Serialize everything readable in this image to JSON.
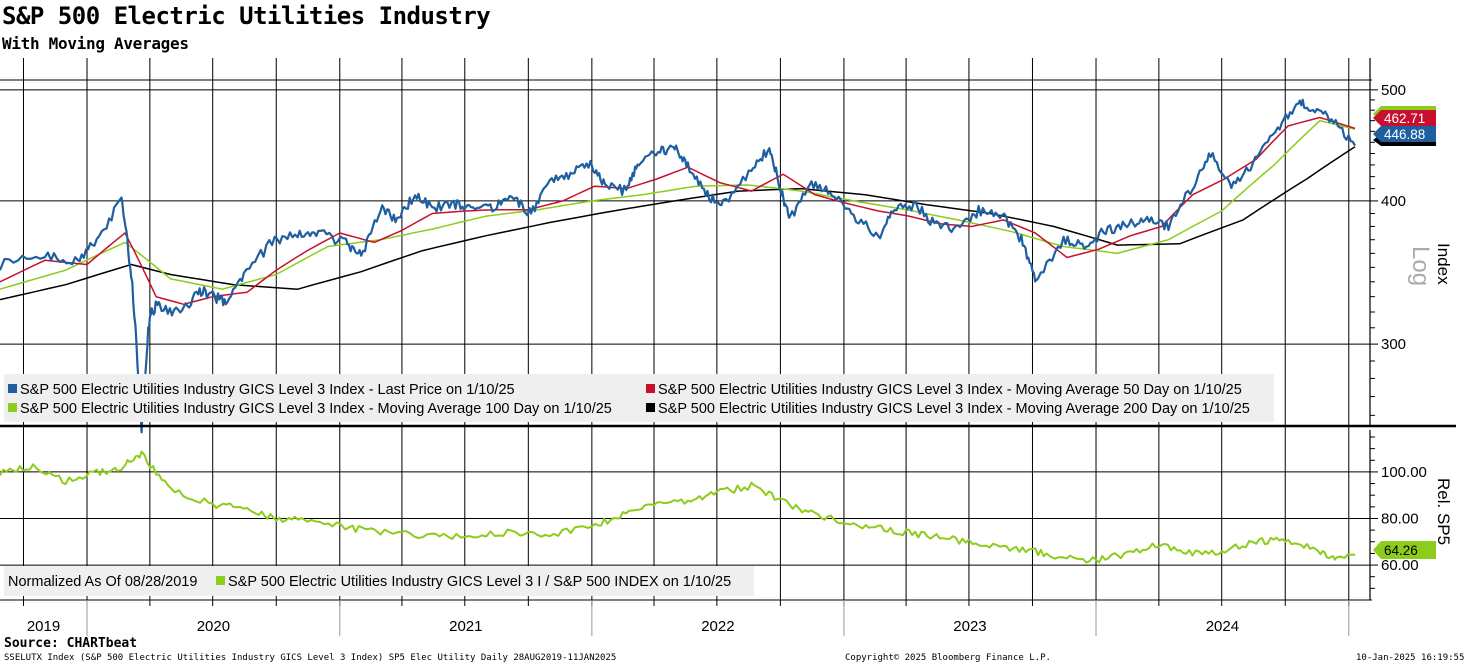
{
  "title": "S&P 500 Electric Utilities Industry",
  "subtitle": "With Moving Averages",
  "source": "Source: CHARTbeat",
  "footer": {
    "left": "SSELUTX Index (S&P 500 Electric Utilities Industry GICS Level 3 Index) SP5 Elec Utility  Daily 28AUG2019-11JAN2025",
    "center": "Copyright© 2025 Bloomberg Finance L.P.",
    "right": "10-Jan-2025 16:19:55"
  },
  "colors": {
    "last_price": "#1f5fa0",
    "ma50": "#c8102e",
    "ma100": "#8ccc1a",
    "ma200": "#000000",
    "relative": "#8ccc1a"
  },
  "chart_data": [
    {
      "type": "line",
      "panel": "upper",
      "scale": "log",
      "ylabel": "Index",
      "scale_label": "Log",
      "ylim": [
        255,
        510
      ],
      "yticks": [
        300,
        400,
        500
      ],
      "x_years": [
        "2019",
        "2020",
        "2021",
        "2022",
        "2023",
        "2024"
      ],
      "x_start": "2019-08-28",
      "x_end": "2025-01-10",
      "last_values": {
        "ma50": "462.71",
        "last": "446.88"
      },
      "legend": [
        "S&P 500 Electric Utilities Industry GICS Level 3 Index - Last Price on 1/10/25",
        "S&P 500 Electric Utilities Industry GICS Level 3 Index - Moving Average 50 Day on 1/10/25",
        "S&P 500 Electric Utilities Industry GICS Level 3 Index - Moving Average 100 Day on 1/10/25",
        "S&P 500 Electric Utilities Industry GICS Level 3 Index - Moving Average 200 Day on 1/10/25"
      ],
      "series": [
        {
          "key": "last",
          "x": [
            "2019-08-28",
            "2019-11-01",
            "2019-12-15",
            "2020-01-15",
            "2020-02-20",
            "2020-03-05",
            "2020-03-20",
            "2020-04-01",
            "2020-04-15",
            "2020-05-15",
            "2020-06-10",
            "2020-07-01",
            "2020-07-20",
            "2020-08-15",
            "2020-09-25",
            "2020-11-01",
            "2020-12-01",
            "2021-01-10",
            "2021-02-01",
            "2021-03-01",
            "2021-03-25",
            "2021-04-20",
            "2021-05-15",
            "2021-06-15",
            "2021-07-10",
            "2021-08-10",
            "2021-09-10",
            "2021-10-05",
            "2021-11-01",
            "2021-12-01",
            "2021-12-30",
            "2022-01-20",
            "2022-02-20",
            "2022-03-10",
            "2022-04-10",
            "2022-05-01",
            "2022-05-20",
            "2022-06-15",
            "2022-07-10",
            "2022-08-20",
            "2022-09-15",
            "2022-10-01",
            "2022-10-15",
            "2022-11-15",
            "2022-12-15",
            "2023-01-15",
            "2023-02-20",
            "2023-03-15",
            "2023-04-15",
            "2023-05-15",
            "2023-06-15",
            "2023-07-15",
            "2023-08-15",
            "2023-09-15",
            "2023-10-05",
            "2023-11-15",
            "2023-12-15",
            "2024-01-15",
            "2024-02-15",
            "2024-03-15",
            "2024-04-15",
            "2024-05-20",
            "2024-06-15",
            "2024-07-15",
            "2024-08-15",
            "2024-09-20",
            "2024-10-20",
            "2024-11-10",
            "2024-12-10",
            "2025-01-10"
          ],
          "values": [
            352,
            360,
            355,
            368,
            402,
            345,
            255,
            320,
            325,
            318,
            335,
            330,
            326,
            345,
            368,
            375,
            375,
            368,
            358,
            395,
            385,
            405,
            395,
            398,
            392,
            395,
            402,
            390,
            418,
            422,
            432,
            412,
            408,
            432,
            442,
            445,
            430,
            405,
            398,
            425,
            445,
            410,
            385,
            415,
            405,
            388,
            372,
            393,
            397,
            380,
            378,
            392,
            390,
            370,
            341,
            370,
            365,
            377,
            382,
            386,
            380,
            412,
            440,
            410,
            430,
            462,
            488,
            482,
            470,
            447
          ]
        },
        {
          "key": "ma50",
          "x": [
            "2019-08-28",
            "2019-11-01",
            "2020-01-01",
            "2020-02-25",
            "2020-04-10",
            "2020-05-20",
            "2020-07-01",
            "2020-08-20",
            "2020-10-01",
            "2020-11-15",
            "2021-01-01",
            "2021-02-20",
            "2021-04-01",
            "2021-05-15",
            "2021-07-01",
            "2021-08-15",
            "2021-10-01",
            "2021-11-20",
            "2022-01-05",
            "2022-02-20",
            "2022-04-05",
            "2022-05-20",
            "2022-07-05",
            "2022-08-20",
            "2022-10-05",
            "2022-11-20",
            "2023-01-05",
            "2023-02-20",
            "2023-04-05",
            "2023-05-20",
            "2023-07-05",
            "2023-08-20",
            "2023-10-05",
            "2023-11-20",
            "2024-01-05",
            "2024-02-20",
            "2024-04-05",
            "2024-05-20",
            "2024-07-05",
            "2024-08-20",
            "2024-10-05",
            "2024-11-20",
            "2025-01-10"
          ],
          "values": [
            340,
            355,
            352,
            375,
            330,
            325,
            330,
            333,
            348,
            362,
            375,
            368,
            377,
            390,
            392,
            393,
            393,
            400,
            412,
            410,
            418,
            428,
            415,
            408,
            422,
            405,
            398,
            392,
            388,
            382,
            380,
            385,
            375,
            357,
            363,
            373,
            380,
            405,
            418,
            435,
            465,
            473,
            462.71
          ]
        },
        {
          "key": "ma100",
          "x": [
            "2019-08-28",
            "2019-12-01",
            "2020-02-25",
            "2020-05-01",
            "2020-07-15",
            "2020-10-01",
            "2020-12-15",
            "2021-03-01",
            "2021-05-15",
            "2021-08-01",
            "2021-10-15",
            "2022-01-01",
            "2022-03-15",
            "2022-06-01",
            "2022-08-15",
            "2022-11-01",
            "2023-01-15",
            "2023-04-01",
            "2023-06-15",
            "2023-09-01",
            "2023-11-15",
            "2024-02-01",
            "2024-04-15",
            "2024-07-01",
            "2024-09-15",
            "2024-11-20",
            "2025-01-10"
          ],
          "values": [
            335,
            348,
            368,
            342,
            335,
            345,
            365,
            370,
            378,
            388,
            393,
            400,
            405,
            412,
            413,
            408,
            400,
            393,
            385,
            376,
            365,
            360,
            370,
            392,
            430,
            470,
            462
          ]
        },
        {
          "key": "ma200",
          "x": [
            "2019-08-28",
            "2019-12-01",
            "2020-03-05",
            "2020-05-01",
            "2020-08-01",
            "2020-11-01",
            "2021-02-01",
            "2021-05-01",
            "2021-08-01",
            "2021-11-01",
            "2022-02-01",
            "2022-05-01",
            "2022-08-01",
            "2022-11-01",
            "2023-02-01",
            "2023-05-01",
            "2023-08-01",
            "2023-11-01",
            "2024-02-01",
            "2024-05-01",
            "2024-08-01",
            "2024-11-01",
            "2025-01-10"
          ],
          "values": [
            328,
            338,
            352,
            345,
            338,
            335,
            347,
            362,
            373,
            383,
            392,
            400,
            408,
            410,
            405,
            397,
            390,
            380,
            366,
            367,
            385,
            418,
            446
          ]
        }
      ]
    },
    {
      "type": "line",
      "panel": "lower",
      "ylabel": "Rel. SP5",
      "ylim": [
        45,
        118
      ],
      "yticks": [
        "100.00",
        "80.00",
        "60.00"
      ],
      "last_value": "64.26",
      "legend": [
        "Normalized As Of 08/28/2019",
        "S&P 500 Electric Utilities Industry GICS Level 3 I / S&P 500 INDEX on 1/10/25"
      ],
      "series": [
        {
          "key": "relative",
          "x": [
            "2019-08-28",
            "2019-10-15",
            "2019-12-01",
            "2020-01-20",
            "2020-02-20",
            "2020-03-20",
            "2020-05-01",
            "2020-07-01",
            "2020-08-20",
            "2020-10-01",
            "2020-11-15",
            "2021-01-15",
            "2021-03-01",
            "2021-05-01",
            "2021-07-01",
            "2021-09-01",
            "2021-11-01",
            "2022-01-01",
            "2022-02-15",
            "2022-04-01",
            "2022-05-20",
            "2022-07-01",
            "2022-08-20",
            "2022-10-01",
            "2022-11-15",
            "2023-01-01",
            "2023-02-15",
            "2023-04-01",
            "2023-05-15",
            "2023-07-01",
            "2023-08-20",
            "2023-10-05",
            "2023-11-15",
            "2024-01-01",
            "2024-02-15",
            "2024-04-01",
            "2024-05-15",
            "2024-07-01",
            "2024-08-20",
            "2024-10-01",
            "2024-11-15",
            "2024-12-15",
            "2025-01-10"
          ],
          "values": [
            100,
            102,
            96,
            100,
            102,
            108,
            92,
            86,
            84,
            80,
            79,
            76,
            74,
            73,
            72,
            74,
            73,
            76,
            82,
            86,
            88,
            91,
            94,
            88,
            82,
            79,
            76,
            74,
            72,
            70,
            67,
            66,
            63,
            62,
            65,
            69,
            65,
            66,
            70,
            71,
            67,
            62,
            64.26
          ]
        }
      ]
    }
  ]
}
